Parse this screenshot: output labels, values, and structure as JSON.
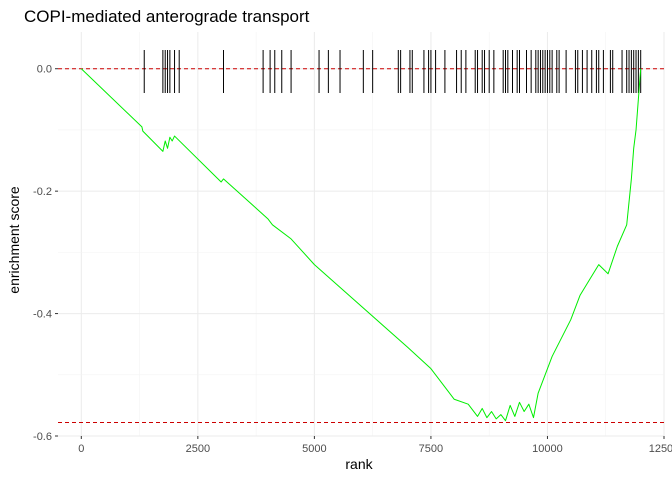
{
  "chart_data": {
    "type": "line",
    "title": "COPI-mediated anterograde transport",
    "xlabel": "rank",
    "ylabel": "enrichment score",
    "xlim": [
      -500,
      12500
    ],
    "ylim": [
      -0.6,
      0.06
    ],
    "x_ticks": [
      0,
      2500,
      5000,
      7500,
      10000,
      12500
    ],
    "x_tick_labels": [
      "0",
      "2500",
      "5000",
      "7500",
      "10000",
      "12500"
    ],
    "y_ticks": [
      0.0,
      -0.2,
      -0.4,
      -0.6
    ],
    "y_tick_labels": [
      "0.0",
      "-0.2",
      "-0.4",
      "-0.6"
    ],
    "grid": true,
    "legend": "none",
    "series": [
      {
        "color": "#00ee00",
        "x": [
          0,
          1300,
          1320,
          1750,
          1800,
          1850,
          1900,
          1950,
          2000,
          3000,
          3050,
          4000,
          4100,
          4500,
          5000,
          7000,
          7500,
          8000,
          8300,
          8500,
          8600,
          8700,
          8800,
          8900,
          9000,
          9100,
          9200,
          9300,
          9400,
          9500,
          9600,
          9700,
          9800,
          9900,
          10000,
          10100,
          10300,
          10500,
          10700,
          10900,
          11100,
          11300,
          11500,
          11700,
          11800,
          11850,
          11900,
          11950,
          12000
        ],
        "y": [
          0.0,
          -0.095,
          -0.102,
          -0.135,
          -0.118,
          -0.13,
          -0.112,
          -0.118,
          -0.11,
          -0.185,
          -0.18,
          -0.245,
          -0.255,
          -0.278,
          -0.32,
          -0.455,
          -0.49,
          -0.54,
          -0.548,
          -0.568,
          -0.555,
          -0.57,
          -0.56,
          -0.572,
          -0.565,
          -0.575,
          -0.55,
          -0.568,
          -0.545,
          -0.56,
          -0.548,
          -0.57,
          -0.53,
          -0.51,
          -0.49,
          -0.47,
          -0.44,
          -0.41,
          -0.37,
          -0.345,
          -0.32,
          -0.335,
          -0.29,
          -0.255,
          -0.18,
          -0.13,
          -0.1,
          -0.05,
          0.0
        ]
      }
    ],
    "hlines": [
      {
        "y": 0.0,
        "color": "#cc0000",
        "style": "dashed"
      },
      {
        "y": -0.578,
        "color": "#cc0000",
        "style": "dashed"
      }
    ],
    "hit_ranks": [
      1350,
      1750,
      1800,
      1850,
      1900,
      2000,
      2100,
      3050,
      3900,
      4050,
      4150,
      4300,
      4500,
      5100,
      5300,
      5550,
      6050,
      6250,
      6800,
      6850,
      7050,
      7100,
      7350,
      7450,
      7500,
      7600,
      7800,
      8050,
      8150,
      8250,
      8450,
      8500,
      8600,
      8650,
      8750,
      8850,
      9050,
      9100,
      9150,
      9250,
      9350,
      9400,
      9550,
      9650,
      9750,
      9800,
      9850,
      9900,
      9950,
      10000,
      10050,
      10100,
      10200,
      10250,
      10400,
      10600,
      10650,
      10750,
      10850,
      10950,
      11050,
      11100,
      11200,
      11350,
      11400,
      11600,
      11700,
      11750,
      11800,
      11850,
      11900,
      11950,
      12000
    ]
  }
}
